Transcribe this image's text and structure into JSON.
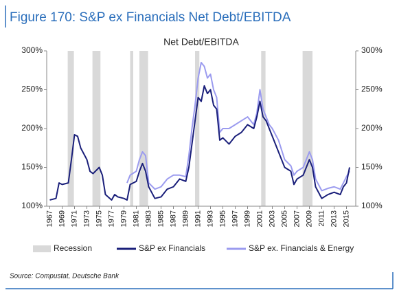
{
  "figure_title": "Figure 170: S&P ex Financials Net Debt/EBITDA",
  "source": "Source: Compustat, Deutsche Bank",
  "chart_data": {
    "type": "line",
    "title": "Net Debt/EBITDA",
    "x": [
      1967,
      1968,
      1968.5,
      1969,
      1970,
      1970.5,
      1971,
      1971.5,
      1972,
      1973,
      1973.5,
      1974,
      1975,
      1975.5,
      1976,
      1977,
      1977.5,
      1978,
      1979,
      1979.5,
      1980,
      1981,
      1981.5,
      1982,
      1982.5,
      1983,
      1984,
      1985,
      1986,
      1987,
      1988,
      1989,
      1989.5,
      1990,
      1990.5,
      1991,
      1991.5,
      1992,
      1992.5,
      1993,
      1993.5,
      1994,
      1994.5,
      1995,
      1996,
      1997,
      1998,
      1999,
      2000,
      2000.5,
      2001,
      2001.5,
      2002,
      2002.5,
      2003,
      2004,
      2005,
      2006,
      2006.5,
      2007,
      2008,
      2008.5,
      2009,
      2009.5,
      2010,
      2011,
      2012,
      2013,
      2014,
      2014.5,
      2015,
      2015.5
    ],
    "series": [
      {
        "name": "S&P ex Financials",
        "color": "#1a1f7a",
        "values": [
          108,
          110,
          130,
          128,
          130,
          160,
          192,
          190,
          175,
          160,
          145,
          142,
          150,
          140,
          115,
          108,
          115,
          112,
          110,
          108,
          128,
          132,
          145,
          155,
          145,
          125,
          110,
          112,
          122,
          125,
          135,
          132,
          150,
          180,
          210,
          240,
          235,
          255,
          245,
          250,
          230,
          225,
          185,
          188,
          180,
          190,
          195,
          205,
          200,
          215,
          235,
          215,
          210,
          200,
          190,
          170,
          150,
          145,
          128,
          135,
          140,
          150,
          160,
          150,
          125,
          110,
          115,
          118,
          115,
          125,
          130,
          150
        ]
      },
      {
        "name": "S&P ex. Financials & Energy",
        "color": "#9b9bef",
        "values": [
          null,
          null,
          null,
          null,
          null,
          null,
          null,
          null,
          null,
          null,
          null,
          null,
          null,
          null,
          null,
          null,
          null,
          null,
          null,
          130,
          140,
          145,
          160,
          170,
          165,
          130,
          122,
          125,
          135,
          140,
          140,
          138,
          165,
          200,
          230,
          265,
          285,
          280,
          265,
          270,
          250,
          240,
          195,
          200,
          200,
          205,
          210,
          215,
          205,
          220,
          250,
          225,
          215,
          205,
          200,
          185,
          160,
          152,
          140,
          145,
          150,
          160,
          170,
          160,
          135,
          120,
          123,
          125,
          122,
          130,
          138,
          145
        ]
      }
    ],
    "recession_name": "Recession",
    "recession_color": "#d9d9d9",
    "recessions": [
      [
        1969.9,
        1970.9
      ],
      [
        1973.9,
        1975.2
      ],
      [
        1980.0,
        1980.5
      ],
      [
        1981.5,
        1982.9
      ],
      [
        1990.5,
        1991.2
      ],
      [
        2001.2,
        2001.9
      ],
      [
        2007.9,
        2009.5
      ]
    ],
    "xlim": [
      1966.5,
      2016.5
    ],
    "xticks": [
      1967,
      1969,
      1971,
      1973,
      1975,
      1977,
      1979,
      1981,
      1983,
      1985,
      1987,
      1989,
      1991,
      1993,
      1995,
      1997,
      1999,
      2001,
      2003,
      2005,
      2007,
      2009,
      2011,
      2013,
      2015
    ],
    "ylim": [
      100,
      300
    ],
    "yticks": [
      {
        "value": 100,
        "label": "100%"
      },
      {
        "value": 150,
        "label": "150%"
      },
      {
        "value": 200,
        "label": "200%"
      },
      {
        "value": 250,
        "label": "250%"
      },
      {
        "value": 300,
        "label": "300%"
      }
    ],
    "y2lim": [
      100,
      300
    ],
    "y2ticks": [
      {
        "value": 100,
        "label": "100%"
      },
      {
        "value": 150,
        "label": "150%"
      },
      {
        "value": 200,
        "label": "200%"
      },
      {
        "value": 250,
        "label": "250%"
      },
      {
        "value": 300,
        "label": "300%"
      }
    ]
  }
}
